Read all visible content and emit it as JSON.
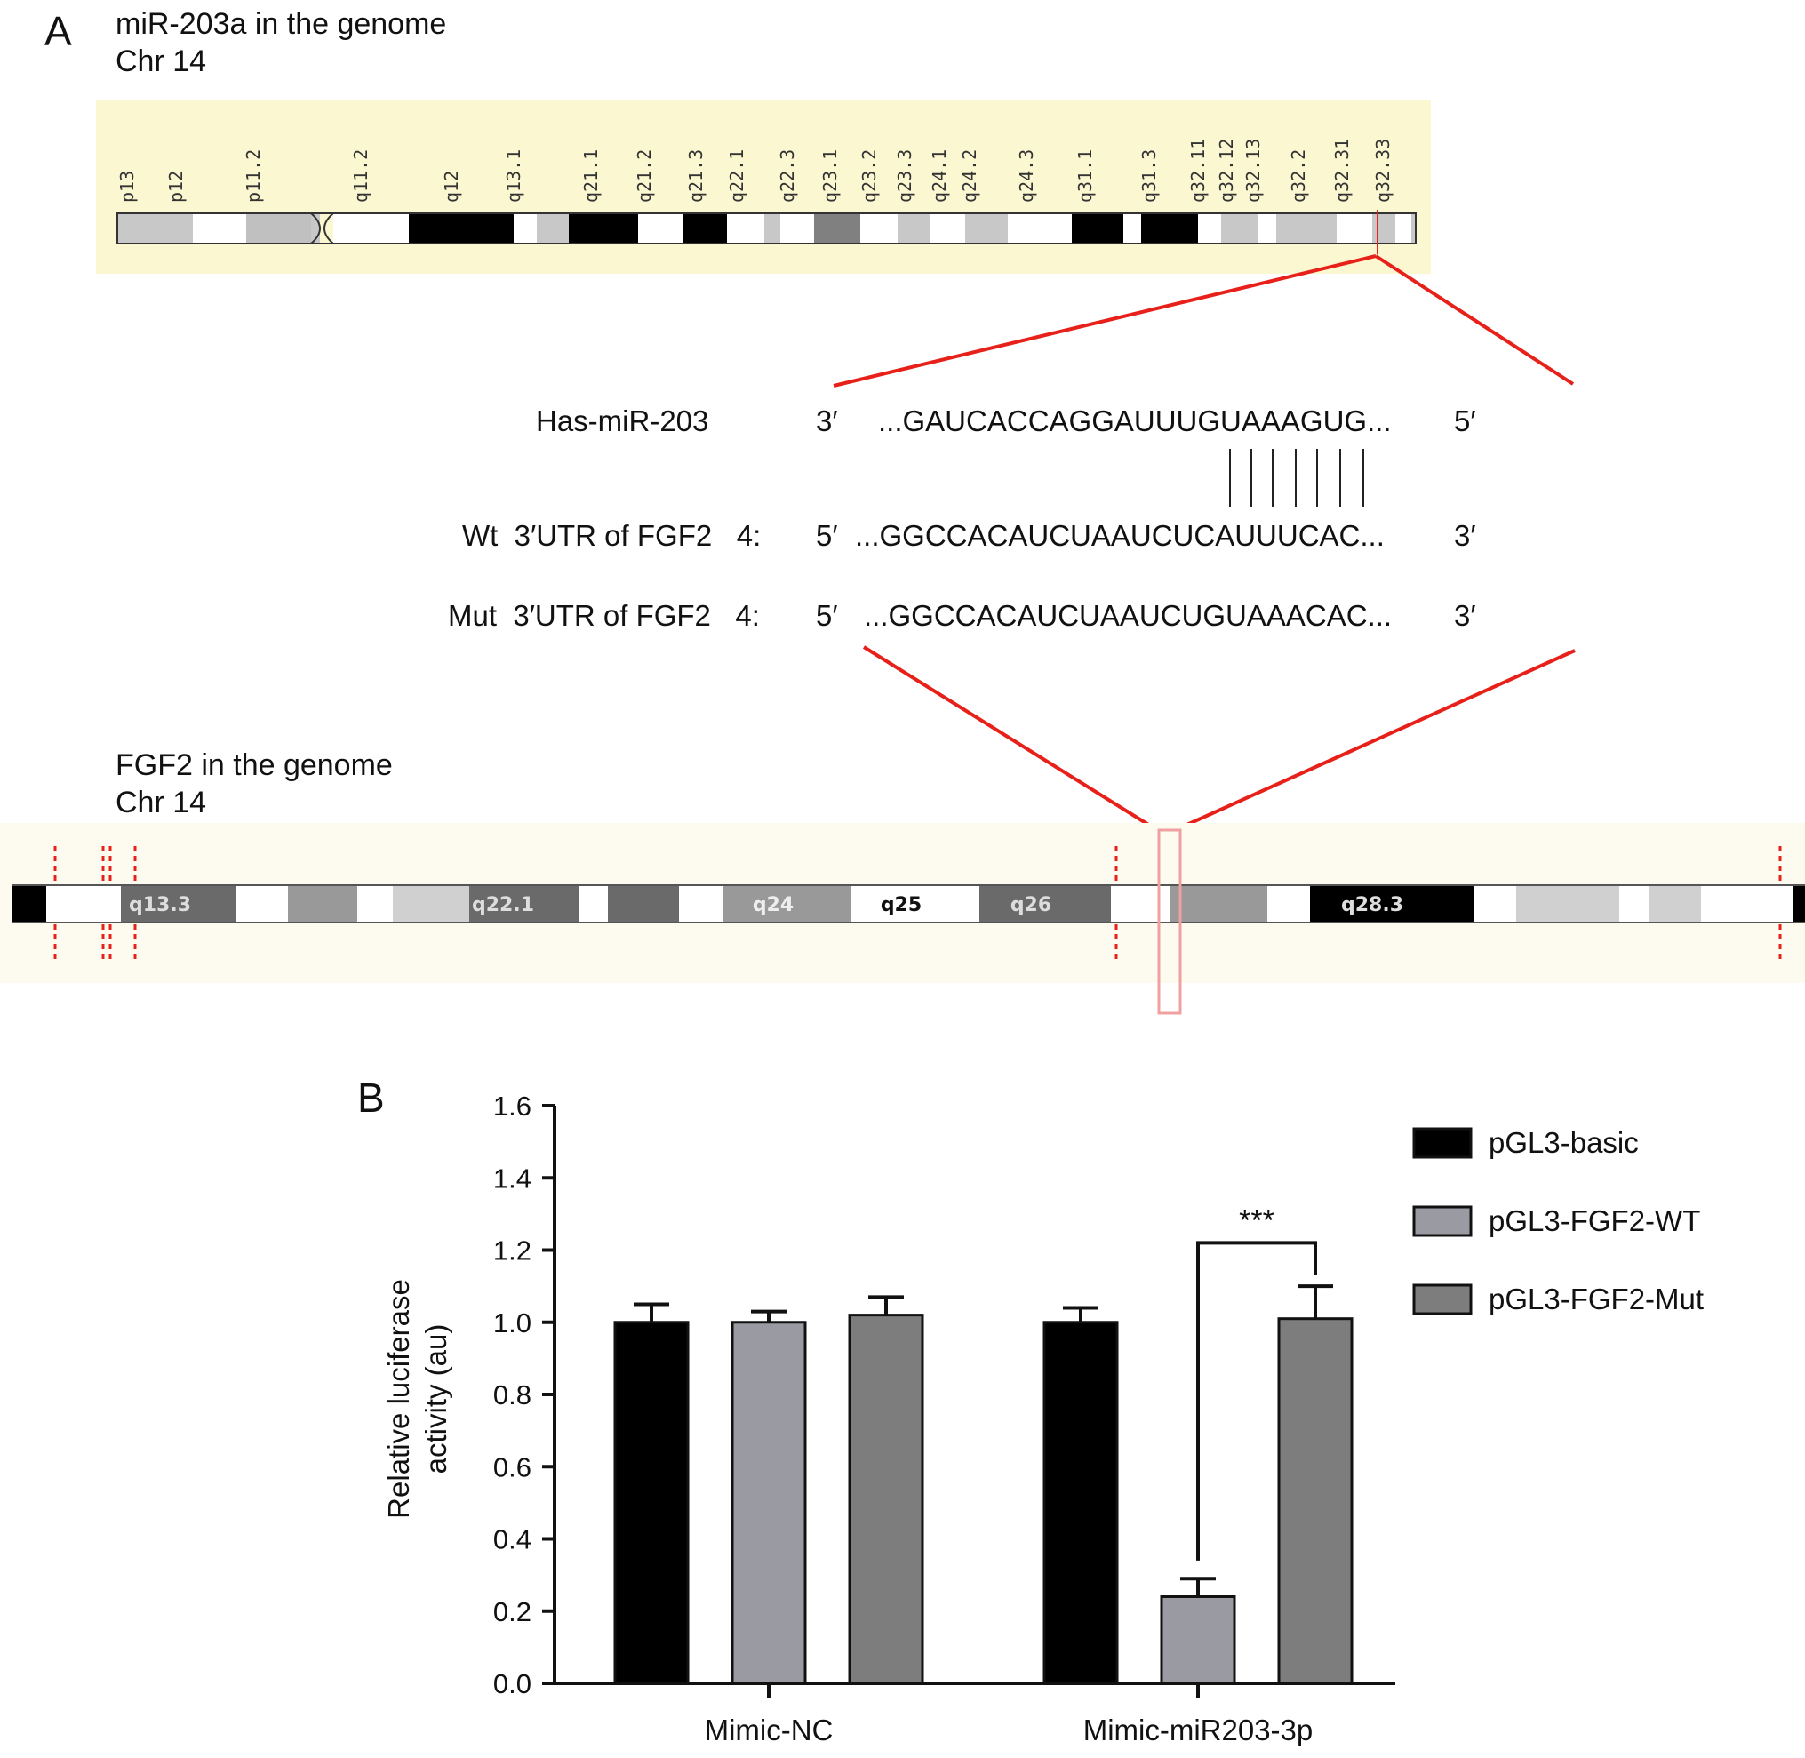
{
  "panel_a": {
    "letter": "A",
    "top_title": "miR-203a in the genome",
    "top_chr": "Chr 14",
    "ideogram1_bands": [
      "p13",
      "p12",
      "p11.2",
      "q11.2",
      "q12",
      "q13.1",
      "q21.1",
      "q21.2",
      "q21.3",
      "q22.1",
      "q22.3",
      "q23.1",
      "q23.2",
      "q23.3",
      "q24.1",
      "q24.2",
      "q24.3",
      "q31.1",
      "q31.3",
      "q32.11",
      "q32.12",
      "q32.13",
      "q32.2",
      "q32.31",
      "q32.33"
    ],
    "seq_rows": [
      {
        "label": "Has-miR-203",
        "end_left": "3′",
        "sequence": "...GAUCACCAGGAUUUGUAAAGUG...",
        "end_right": "5′"
      },
      {
        "label": "Wt  3′UTR of FGF2   4:",
        "end_left": "5′",
        "sequence": "...GGCCACAUCUAAUCUCAUUUCAC...",
        "end_right": "3′"
      },
      {
        "label": "Mut  3′UTR of FGF2   4:",
        "end_left": "5′",
        "sequence": "...GGCCACAUCUAAUCUGUAAACAC...",
        "end_right": "3′"
      }
    ],
    "pairing_lines": 7,
    "bottom_title": "FGF2 in the genome",
    "bottom_chr": "Chr 14",
    "ideogram2_bands": [
      "q13.3",
      "q22.1",
      "q24",
      "q25",
      "q26",
      "q28.3"
    ],
    "highlight_color": "#e8201a"
  },
  "panel_b": {
    "letter": "B"
  },
  "chart_data": {
    "type": "bar",
    "categories": [
      "Mimic-NC",
      "Mimic-miR203-3p"
    ],
    "series": [
      {
        "name": "pGL3-basic",
        "color": "#000000",
        "values": [
          1.0,
          1.0
        ],
        "errors": [
          0.05,
          0.04
        ]
      },
      {
        "name": "pGL3-FGF2-WT",
        "color": "#9a9aa2",
        "values": [
          1.0,
          0.24
        ],
        "errors": [
          0.03,
          0.05
        ]
      },
      {
        "name": "pGL3-FGF2-Mut",
        "color": "#7d7d7d",
        "values": [
          1.02,
          1.01
        ],
        "errors": [
          0.05,
          0.09
        ]
      }
    ],
    "ylabel_line1": "Relative luciferase",
    "ylabel_line2": "activity (au)",
    "ylim": [
      0,
      1.6
    ],
    "yticks": [
      "0.0",
      "0.2",
      "0.4",
      "0.6",
      "0.8",
      "1.0",
      "1.2",
      "1.4",
      "1.6"
    ],
    "significance": "***",
    "legend_position": "top-right"
  }
}
